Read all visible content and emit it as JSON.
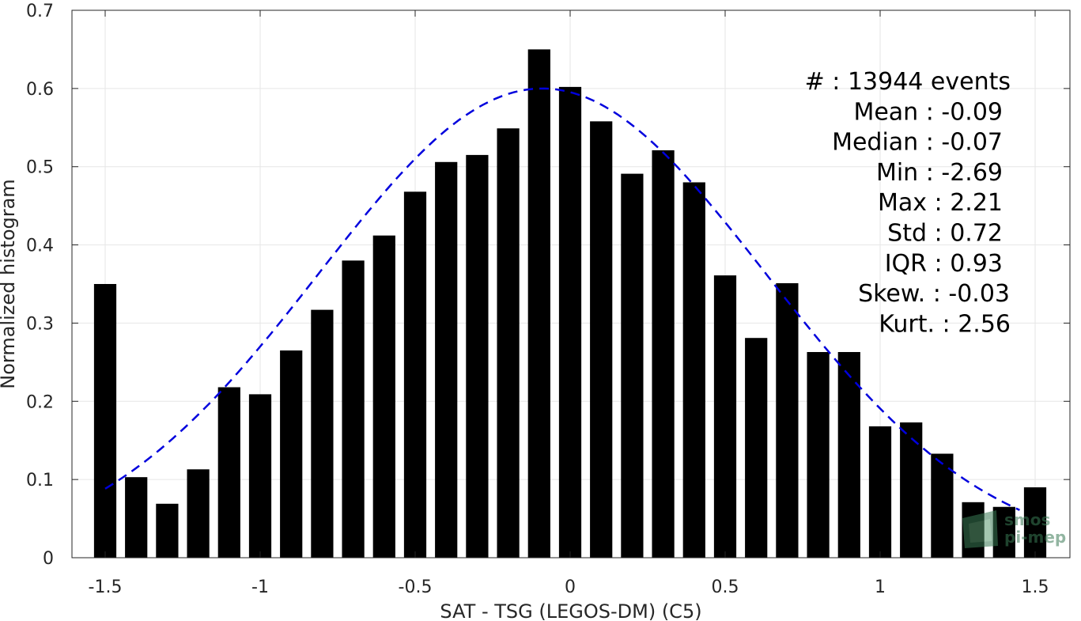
{
  "chart_data": {
    "type": "bar",
    "xlabel": "SAT - TSG (LEGOS-DM) (C5)",
    "ylabel": "Normalized histogram",
    "xlim": [
      -1.55,
      1.6
    ],
    "ylim": [
      0,
      0.7
    ],
    "xticks": [
      -1.5,
      -1,
      -0.5,
      0,
      0.5,
      1,
      1.5
    ],
    "xtick_labels": [
      "-1.5",
      "-1",
      "-0.5",
      "0",
      "0.5",
      "1",
      "1.5"
    ],
    "yticks": [
      0,
      0.1,
      0.2,
      0.3,
      0.4,
      0.5,
      0.6,
      0.7
    ],
    "ytick_labels": [
      "0",
      "0.1",
      "0.2",
      "0.3",
      "0.4",
      "0.5",
      "0.6",
      "0.7"
    ],
    "grid": true,
    "bar_color": "#000000",
    "fit_color": "#0000dd",
    "bars": [
      {
        "x": -1.5,
        "y": 0.35
      },
      {
        "x": -1.4,
        "y": 0.103
      },
      {
        "x": -1.3,
        "y": 0.069
      },
      {
        "x": -1.2,
        "y": 0.113
      },
      {
        "x": -1.1,
        "y": 0.218
      },
      {
        "x": -1.0,
        "y": 0.209
      },
      {
        "x": -0.9,
        "y": 0.265
      },
      {
        "x": -0.8,
        "y": 0.317
      },
      {
        "x": -0.7,
        "y": 0.38
      },
      {
        "x": -0.6,
        "y": 0.412
      },
      {
        "x": -0.5,
        "y": 0.468
      },
      {
        "x": -0.4,
        "y": 0.506
      },
      {
        "x": -0.3,
        "y": 0.515
      },
      {
        "x": -0.2,
        "y": 0.549
      },
      {
        "x": -0.1,
        "y": 0.65
      },
      {
        "x": 0.0,
        "y": 0.602
      },
      {
        "x": 0.1,
        "y": 0.558
      },
      {
        "x": 0.2,
        "y": 0.491
      },
      {
        "x": 0.3,
        "y": 0.521
      },
      {
        "x": 0.4,
        "y": 0.48
      },
      {
        "x": 0.5,
        "y": 0.361
      },
      {
        "x": 0.6,
        "y": 0.281
      },
      {
        "x": 0.7,
        "y": 0.351
      },
      {
        "x": 0.8,
        "y": 0.263
      },
      {
        "x": 0.9,
        "y": 0.263
      },
      {
        "x": 1.0,
        "y": 0.168
      },
      {
        "x": 1.1,
        "y": 0.173
      },
      {
        "x": 1.2,
        "y": 0.133
      },
      {
        "x": 1.3,
        "y": 0.071
      },
      {
        "x": 1.4,
        "y": 0.065
      },
      {
        "x": 1.5,
        "y": 0.09
      }
    ],
    "fit_curve": {
      "style": "dashed",
      "mean": -0.09,
      "std": 0.72,
      "peak": 0.6,
      "x_range": [
        -1.5,
        1.45
      ]
    },
    "stats": [
      {
        "label": "#  : 13944 events"
      },
      {
        "label": "Mean : -0.09"
      },
      {
        "label": "Median : -0.07"
      },
      {
        "label": "Min : -2.69"
      },
      {
        "label": "Max : 2.21"
      },
      {
        "label": "Std : 0.72"
      },
      {
        "label": "IQR : 0.93"
      },
      {
        "label": "Skew. : -0.03"
      },
      {
        "label": "Kurt. : 2.56"
      }
    ],
    "watermark": {
      "line1": "smos",
      "line2": "pi-mep"
    }
  }
}
